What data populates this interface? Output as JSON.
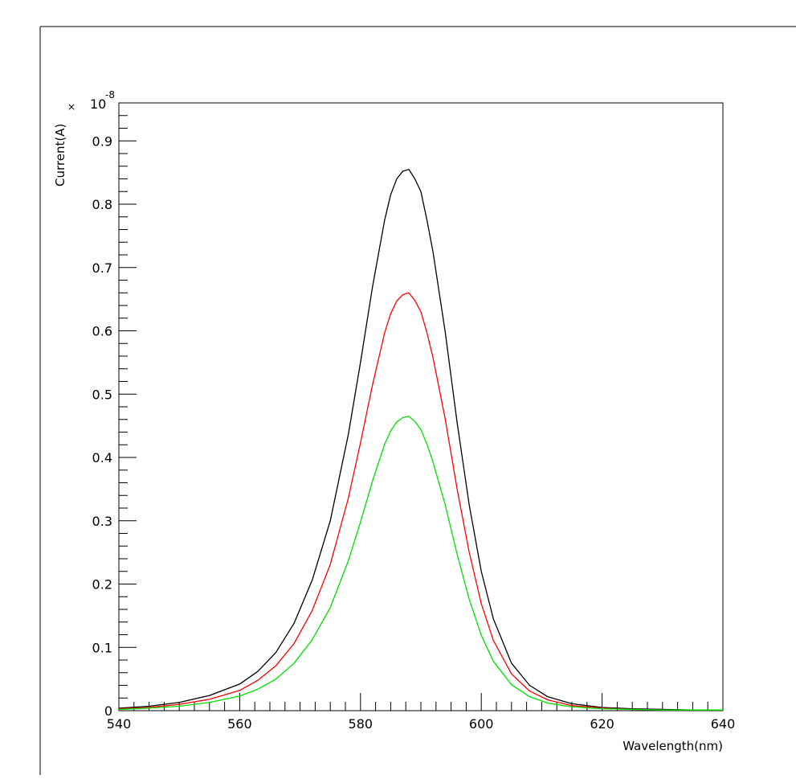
{
  "chart_data": {
    "type": "line",
    "title": "",
    "xlabel": "Wavelength(nm)",
    "ylabel": "Current(A)",
    "y_exponent_label": "10",
    "y_exponent_power": "-8",
    "xlim": [
      540,
      640
    ],
    "ylim": [
      0,
      0.96
    ],
    "x_ticks": [
      540,
      560,
      580,
      600,
      620,
      640
    ],
    "y_ticks": [
      0,
      0.1,
      0.2,
      0.3,
      0.4,
      0.5,
      0.6,
      0.7,
      0.8,
      0.9
    ],
    "x_tick_labels": [
      "540",
      "560",
      "580",
      "600",
      "620",
      "640"
    ],
    "y_tick_labels": [
      "0",
      "0.1",
      "0.2",
      "0.3",
      "0.4",
      "0.5",
      "0.6",
      "0.7",
      "0.8",
      "0.9"
    ],
    "grid": false,
    "series": [
      {
        "color": "#000000",
        "x": [
          540,
          545,
          550,
          555,
          560,
          563,
          566,
          569,
          572,
          575,
          578,
          580,
          582,
          584,
          585,
          586,
          587,
          588,
          589,
          590,
          591,
          592,
          594,
          596,
          598,
          600,
          602,
          605,
          608,
          611,
          615,
          620,
          625,
          630,
          635,
          640
        ],
        "y": [
          0.004,
          0.007,
          0.013,
          0.024,
          0.042,
          0.062,
          0.092,
          0.138,
          0.206,
          0.3,
          0.437,
          0.55,
          0.67,
          0.775,
          0.815,
          0.84,
          0.852,
          0.855,
          0.84,
          0.82,
          0.775,
          0.725,
          0.6,
          0.455,
          0.325,
          0.22,
          0.145,
          0.075,
          0.04,
          0.022,
          0.011,
          0.005,
          0.003,
          0.002,
          0.001,
          0.001
        ]
      },
      {
        "color": "#ff0000",
        "x": [
          540,
          545,
          550,
          555,
          560,
          563,
          566,
          569,
          572,
          575,
          578,
          580,
          582,
          584,
          585,
          586,
          587,
          588,
          589,
          590,
          591,
          592,
          594,
          596,
          598,
          600,
          602,
          605,
          608,
          611,
          615,
          620,
          625,
          630,
          635,
          640
        ],
        "y": [
          0.003,
          0.005,
          0.01,
          0.018,
          0.032,
          0.048,
          0.071,
          0.106,
          0.158,
          0.231,
          0.336,
          0.423,
          0.515,
          0.597,
          0.627,
          0.647,
          0.657,
          0.66,
          0.648,
          0.63,
          0.597,
          0.558,
          0.462,
          0.35,
          0.25,
          0.169,
          0.111,
          0.058,
          0.031,
          0.017,
          0.008,
          0.004,
          0.002,
          0.001,
          0.001,
          0.001
        ]
      },
      {
        "color": "#00e000",
        "x": [
          540,
          545,
          550,
          555,
          560,
          563,
          566,
          569,
          572,
          575,
          578,
          580,
          582,
          584,
          585,
          586,
          587,
          588,
          589,
          590,
          591,
          592,
          594,
          596,
          598,
          600,
          602,
          605,
          608,
          611,
          615,
          620,
          625,
          630,
          635,
          640
        ],
        "y": [
          0.002,
          0.004,
          0.007,
          0.013,
          0.023,
          0.034,
          0.05,
          0.075,
          0.112,
          0.163,
          0.237,
          0.298,
          0.363,
          0.421,
          0.442,
          0.456,
          0.463,
          0.465,
          0.457,
          0.444,
          0.421,
          0.393,
          0.326,
          0.247,
          0.176,
          0.119,
          0.078,
          0.041,
          0.022,
          0.012,
          0.006,
          0.003,
          0.002,
          0.001,
          0.001,
          0.001
        ]
      }
    ]
  }
}
